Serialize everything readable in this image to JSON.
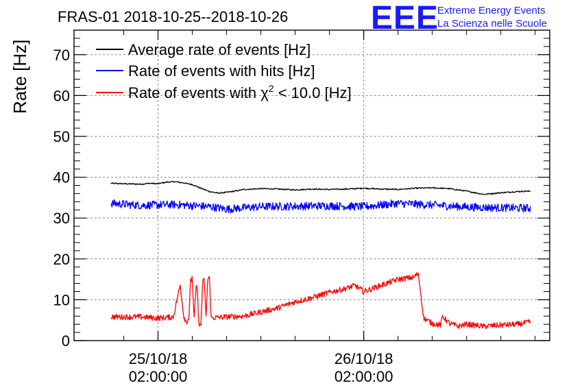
{
  "chart_data": {
    "type": "line",
    "title": "FRAS-01 2018-10-25--2018-10-26",
    "ylabel": "Rate [Hz]",
    "xlabel": "",
    "ylim": [
      0,
      76
    ],
    "yticks": [
      0,
      10,
      20,
      30,
      40,
      50,
      60,
      70
    ],
    "ytick_labels": [
      "0",
      "10",
      "20",
      "30",
      "40",
      "50",
      "60",
      "70"
    ],
    "xlim_hours": [
      -7.8,
      47.7
    ],
    "xticks": [
      {
        "hour": 2,
        "date": "25/10/18",
        "time": "02:00:00"
      },
      {
        "hour": 26,
        "date": "26/10/18",
        "time": "02:00:00"
      }
    ],
    "grid": true,
    "legend_position": "top-left",
    "logo": {
      "letters": "EEE",
      "line1": "Extreme Energy Events",
      "line2": "La Scienza nelle Scuole"
    },
    "series": [
      {
        "name": "Average rate of events [Hz]",
        "label": "Average rate of events [Hz]",
        "color": "#000000",
        "x": [
          -3.5,
          -2,
          0,
          1,
          2,
          3,
          4,
          5,
          6,
          7,
          8,
          9,
          10,
          11,
          12,
          14,
          16,
          18,
          20,
          22,
          24,
          26,
          28,
          30,
          32,
          34,
          36,
          38,
          39,
          40,
          42,
          44,
          45.5
        ],
        "values": [
          38.5,
          38.4,
          38.3,
          38.5,
          38.4,
          38.8,
          38.9,
          38.6,
          38.2,
          37.3,
          36.5,
          36.1,
          36.3,
          36.6,
          37.0,
          37.2,
          37.1,
          36.9,
          37.1,
          37.0,
          37.1,
          37.3,
          37.1,
          37.0,
          37.3,
          37.4,
          37.2,
          36.6,
          36.2,
          35.8,
          36.2,
          36.5,
          36.6
        ],
        "noise": 0.15
      },
      {
        "name": "Rate of events with hits [Hz]",
        "label": "Rate of events with hits [Hz]",
        "color": "#0000ff",
        "x": [
          -3.5,
          0,
          4,
          8,
          10,
          14,
          18,
          22,
          26,
          30,
          34,
          38,
          40,
          45.5
        ],
        "values": [
          33.6,
          33.1,
          33.3,
          32.8,
          32.2,
          32.8,
          32.9,
          33.0,
          32.8,
          33.6,
          33.2,
          32.7,
          32.6,
          32.4
        ],
        "noise": 1.0
      },
      {
        "name": "Rate of events with chi2 < 10.0 [Hz]",
        "label_prefix": "Rate of events with ",
        "label_symbol": "χ",
        "label_sup": "2",
        "label_suffix": " < 10.0 [Hz]",
        "color": "#ff0000",
        "x": [
          -3.5,
          0,
          2,
          3.8,
          4.3,
          4.6,
          5.0,
          5.3,
          5.6,
          5.8,
          6.0,
          6.2,
          6.5,
          6.8,
          7.0,
          7.2,
          7.4,
          7.6,
          7.8,
          8.0,
          8.2,
          8.5,
          10,
          12,
          14,
          16,
          18,
          20,
          22,
          24,
          25,
          26,
          28,
          30,
          31.5,
          31.9,
          32.1,
          32.4,
          33.0,
          34.0,
          35.0,
          35.2,
          36.0,
          37.0,
          38.0,
          40.0,
          42.0,
          44.0,
          45.5
        ],
        "values": [
          5.8,
          5.8,
          5.5,
          5.8,
          11.0,
          13.5,
          6.0,
          4.5,
          5.5,
          14.5,
          15.5,
          5.0,
          14.5,
          3.5,
          3.8,
          14.0,
          15.0,
          5.5,
          15.0,
          15.5,
          5.5,
          5.6,
          5.8,
          6.0,
          7.0,
          8.0,
          9.5,
          10.5,
          11.8,
          12.8,
          13.5,
          12.0,
          13.5,
          15.0,
          15.4,
          15.5,
          16.2,
          16.0,
          5.5,
          4.2,
          3.8,
          6.0,
          4.2,
          3.5,
          4.0,
          3.5,
          3.8,
          4.0,
          4.6
        ],
        "noise": 0.7
      }
    ]
  }
}
